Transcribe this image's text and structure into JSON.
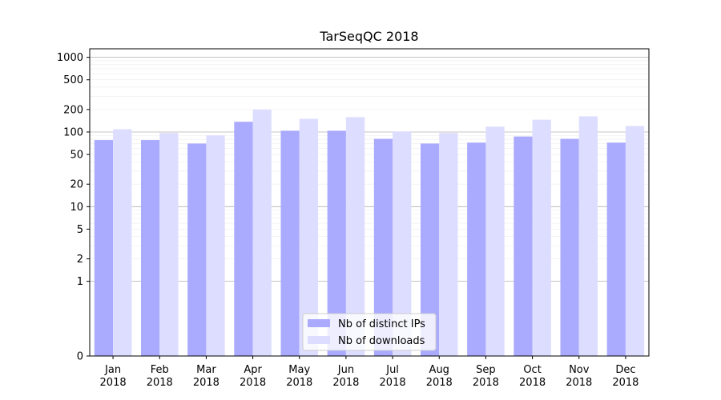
{
  "chart_data": {
    "type": "bar",
    "title": "TarSeqQC 2018",
    "xlabel": "",
    "ylabel": "",
    "yscale": "symlog",
    "ylim": [
      0,
      1300
    ],
    "grid": "horizontal",
    "legend_position": "bottom-center",
    "categories": [
      "Jan\n2018",
      "Feb\n2018",
      "Mar\n2018",
      "Apr\n2018",
      "May\n2018",
      "Jun\n2018",
      "Jul\n2018",
      "Aug\n2018",
      "Sep\n2018",
      "Oct\n2018",
      "Nov\n2018",
      "Dec\n2018"
    ],
    "y_ticks": [
      {
        "value": 0,
        "label": "0"
      },
      {
        "value": 1,
        "label": "1"
      },
      {
        "value": 2,
        "label": "2"
      },
      {
        "value": 5,
        "label": "5"
      },
      {
        "value": 10,
        "label": "10"
      },
      {
        "value": 20,
        "label": "20"
      },
      {
        "value": 50,
        "label": "50"
      },
      {
        "value": 100,
        "label": "100"
      },
      {
        "value": 200,
        "label": "200"
      },
      {
        "value": 500,
        "label": "500"
      },
      {
        "value": 1000,
        "label": "1000"
      }
    ],
    "series": [
      {
        "name": "Nb of distinct IPs",
        "color": "#aaaaff",
        "values": [
          78,
          78,
          70,
          137,
          104,
          104,
          81,
          70,
          72,
          87,
          81,
          72
        ]
      },
      {
        "name": "Nb of downloads",
        "color": "#ddddff",
        "values": [
          109,
          97,
          90,
          200,
          150,
          158,
          102,
          97,
          118,
          146,
          162,
          120
        ]
      }
    ]
  }
}
